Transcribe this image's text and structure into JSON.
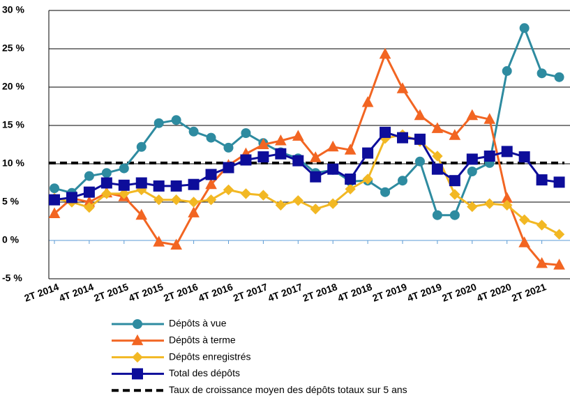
{
  "chart_data": {
    "type": "line",
    "categories": [
      "2T 2014",
      null,
      "4T 2014",
      null,
      "2T 2015",
      null,
      "4T 2015",
      null,
      "2T 2016",
      null,
      "4T 2016",
      null,
      "2T 2017",
      null,
      "4T 2017",
      null,
      "2T 2018",
      null,
      "4T 2018",
      null,
      "2T 2019",
      null,
      "4T 2019",
      null,
      "2T 2020",
      null,
      "4T 2020",
      null,
      "2T 2021",
      null
    ],
    "series": [
      {
        "name": "Dépôts à vue",
        "color": "#2e8ba0",
        "marker": "circle",
        "values": [
          6.8,
          6.2,
          8.4,
          8.8,
          9.4,
          12.2,
          15.3,
          15.7,
          14.2,
          13.4,
          12.1,
          14.0,
          12.7,
          11.5,
          10.7,
          8.8,
          9.2,
          7.7,
          7.8,
          6.3,
          7.8,
          10.3,
          3.3,
          3.3,
          9.0,
          10.1,
          22.1,
          27.7,
          21.8,
          21.3
        ]
      },
      {
        "name": "Dépôts à terme",
        "color": "#f26522",
        "marker": "triangle",
        "values": [
          3.5,
          5.5,
          5.0,
          6.2,
          5.7,
          3.3,
          -0.2,
          -0.6,
          3.6,
          7.3,
          9.8,
          11.3,
          12.5,
          13.0,
          13.6,
          10.8,
          12.2,
          11.8,
          18.0,
          24.3,
          19.8,
          16.3,
          14.6,
          13.7,
          16.3,
          15.8,
          5.5,
          -0.3,
          -3.0,
          -3.2
        ]
      },
      {
        "name": "Dépôts enregistrés",
        "color": "#f2b824",
        "marker": "diamond",
        "values": [
          5.5,
          5.0,
          4.3,
          6.1,
          6.1,
          6.6,
          5.3,
          5.3,
          5.0,
          5.3,
          6.6,
          6.1,
          5.9,
          4.6,
          5.2,
          4.1,
          4.8,
          6.7,
          8.0,
          13.3,
          13.8,
          12.9,
          11.0,
          6.0,
          4.4,
          4.8,
          4.6,
          2.7,
          2.0,
          0.8
        ]
      },
      {
        "name": "Total des dépôts",
        "color": "#0d0d9a",
        "marker": "square",
        "values": [
          5.3,
          5.6,
          6.3,
          7.5,
          7.2,
          7.5,
          7.1,
          7.1,
          7.3,
          8.6,
          9.5,
          10.5,
          10.9,
          11.3,
          10.4,
          8.3,
          9.3,
          8.0,
          11.4,
          14.1,
          13.4,
          13.2,
          9.3,
          7.8,
          10.6,
          11.0,
          11.6,
          10.9,
          7.9,
          7.6
        ]
      }
    ],
    "reference_line": {
      "name": "Taux de croissance moyen des dépôts totaux sur 5 ans",
      "value": 10.1,
      "color": "#000000"
    },
    "ylim": [
      -5,
      30
    ],
    "yticks": [
      {
        "value": -5,
        "label": "-5 %"
      },
      {
        "value": 0,
        "label": "0 %"
      },
      {
        "value": 5,
        "label": "5 %"
      },
      {
        "value": 10,
        "label": "10 %"
      },
      {
        "value": 15,
        "label": "15 %"
      },
      {
        "value": 20,
        "label": "20 %"
      },
      {
        "value": 25,
        "label": "25 %"
      },
      {
        "value": 30,
        "label": "30 %"
      }
    ],
    "grid": true,
    "legend": "bottom"
  }
}
